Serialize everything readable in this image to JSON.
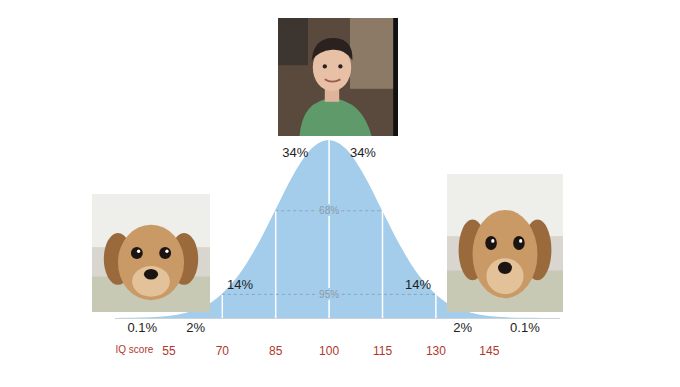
{
  "chart_data": {
    "type": "area",
    "x_label": "IQ score",
    "x": [
      40,
      45,
      50,
      55,
      60,
      65,
      70,
      75,
      80,
      85,
      90,
      95,
      100,
      105,
      110,
      115,
      120,
      125,
      130,
      135,
      140,
      145,
      150,
      155,
      160,
      165
    ],
    "values": [
      0.001,
      0.003,
      0.01,
      0.03,
      0.08,
      0.17,
      0.36,
      0.66,
      1.09,
      1.61,
      2.13,
      2.52,
      2.66,
      2.52,
      2.13,
      1.61,
      1.09,
      0.66,
      0.36,
      0.17,
      0.08,
      0.03,
      0.01,
      0.003,
      0.001,
      0.0002
    ],
    "color": "#a3cdea",
    "xlim": [
      40,
      165
    ],
    "xticks": [
      55,
      70,
      85,
      100,
      115,
      130,
      145
    ],
    "ylim": [
      0,
      2.66
    ],
    "tick_labels": "x",
    "grid": false,
    "bands": {
      "ranges": [
        [
          40,
          55
        ],
        [
          55,
          70
        ],
        [
          70,
          85
        ],
        [
          85,
          100
        ],
        [
          100,
          115
        ],
        [
          115,
          130
        ],
        [
          130,
          145
        ],
        [
          145,
          165
        ]
      ],
      "values": [
        0.1,
        2,
        14,
        34,
        34,
        14,
        2,
        0.1
      ],
      "value_labels": [
        "0.1%",
        "2%",
        "14%",
        "34%",
        "34%",
        "14%",
        "2%",
        "0.1%"
      ]
    },
    "spans": {
      "ranges": [
        [
          85,
          115
        ],
        [
          70,
          130
        ]
      ],
      "values": [
        68,
        95
      ],
      "value_labels": [
        "68%",
        "95%"
      ]
    }
  }
}
